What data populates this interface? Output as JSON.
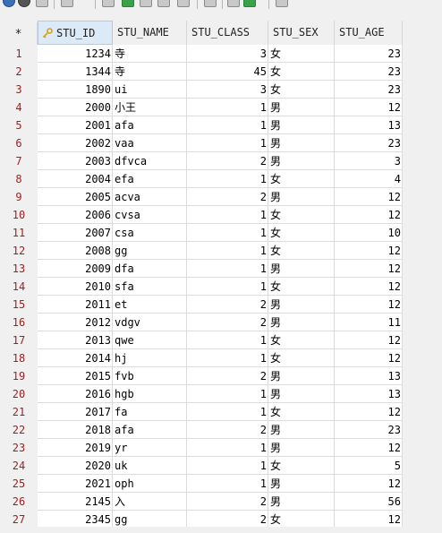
{
  "grid": {
    "row_marker": "*",
    "headers": [
      "STU_ID",
      "STU_NAME",
      "STU_CLASS",
      "STU_SEX",
      "STU_AGE"
    ],
    "rows": [
      {
        "n": "1",
        "id": "1234",
        "name": "寺",
        "cls": "3",
        "sex": "女",
        "age": "23"
      },
      {
        "n": "2",
        "id": "1344",
        "name": "寺",
        "cls": "45",
        "sex": "女",
        "age": "23"
      },
      {
        "n": "3",
        "id": "1890",
        "name": "ui",
        "cls": "3",
        "sex": "女",
        "age": "23"
      },
      {
        "n": "4",
        "id": "2000",
        "name": "小王",
        "cls": "1",
        "sex": "男",
        "age": "12"
      },
      {
        "n": "5",
        "id": "2001",
        "name": "afa",
        "cls": "1",
        "sex": "男",
        "age": "13"
      },
      {
        "n": "6",
        "id": "2002",
        "name": "vaa",
        "cls": "1",
        "sex": "男",
        "age": "23"
      },
      {
        "n": "7",
        "id": "2003",
        "name": "dfvca",
        "cls": "2",
        "sex": "男",
        "age": "3"
      },
      {
        "n": "8",
        "id": "2004",
        "name": "efa",
        "cls": "1",
        "sex": "女",
        "age": "4"
      },
      {
        "n": "9",
        "id": "2005",
        "name": "acva",
        "cls": "2",
        "sex": "男",
        "age": "12"
      },
      {
        "n": "10",
        "id": "2006",
        "name": "cvsa",
        "cls": "1",
        "sex": "女",
        "age": "12"
      },
      {
        "n": "11",
        "id": "2007",
        "name": "csa",
        "cls": "1",
        "sex": "女",
        "age": "10"
      },
      {
        "n": "12",
        "id": "2008",
        "name": "gg",
        "cls": "1",
        "sex": "女",
        "age": "12"
      },
      {
        "n": "13",
        "id": "2009",
        "name": "dfa",
        "cls": "1",
        "sex": "男",
        "age": "12"
      },
      {
        "n": "14",
        "id": "2010",
        "name": "sfa",
        "cls": "1",
        "sex": "女",
        "age": "12"
      },
      {
        "n": "15",
        "id": "2011",
        "name": "et",
        "cls": "2",
        "sex": "男",
        "age": "12"
      },
      {
        "n": "16",
        "id": "2012",
        "name": "vdgv",
        "cls": "2",
        "sex": "男",
        "age": "11"
      },
      {
        "n": "17",
        "id": "2013",
        "name": "qwe",
        "cls": "1",
        "sex": "女",
        "age": "12"
      },
      {
        "n": "18",
        "id": "2014",
        "name": "hj",
        "cls": "1",
        "sex": "女",
        "age": "12"
      },
      {
        "n": "19",
        "id": "2015",
        "name": "fvb",
        "cls": "2",
        "sex": "男",
        "age": "13"
      },
      {
        "n": "20",
        "id": "2016",
        "name": "hgb",
        "cls": "1",
        "sex": "男",
        "age": "13"
      },
      {
        "n": "21",
        "id": "2017",
        "name": "fa",
        "cls": "1",
        "sex": "女",
        "age": "12"
      },
      {
        "n": "22",
        "id": "2018",
        "name": "afa",
        "cls": "2",
        "sex": "男",
        "age": "23"
      },
      {
        "n": "23",
        "id": "2019",
        "name": "yr",
        "cls": "1",
        "sex": "男",
        "age": "12"
      },
      {
        "n": "24",
        "id": "2020",
        "name": "uk",
        "cls": "1",
        "sex": "女",
        "age": "5"
      },
      {
        "n": "25",
        "id": "2021",
        "name": "oph",
        "cls": "1",
        "sex": "男",
        "age": "12"
      },
      {
        "n": "26",
        "id": "2145",
        "name": "入",
        "cls": "2",
        "sex": "男",
        "age": "56"
      },
      {
        "n": "27",
        "id": "2345",
        "name": "gg",
        "cls": "2",
        "sex": "女",
        "age": "12"
      }
    ]
  },
  "colors": {
    "row_number": "#9b1f1f",
    "selected_header": "#dce9f7",
    "key_icon": "#d4a017"
  },
  "icons": {
    "primary_key_column": "key-icon"
  }
}
